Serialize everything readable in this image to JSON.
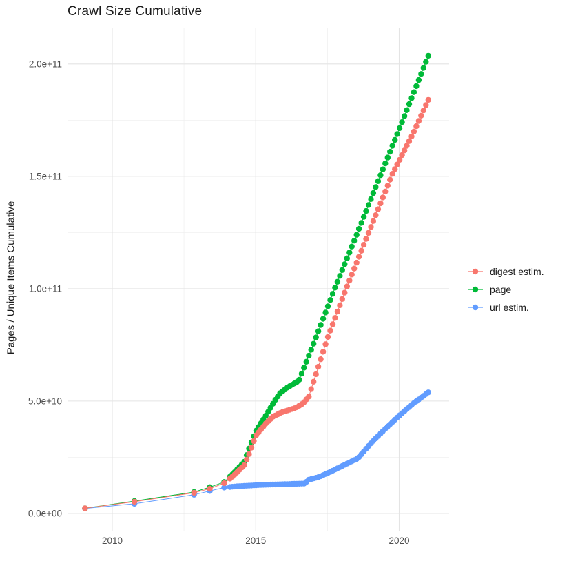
{
  "chart": {
    "title": "Crawl Size Cumulative"
  },
  "legend": {
    "items": [
      {
        "label": "digest estim.",
        "color": "#F8766D"
      },
      {
        "label": "page",
        "color": "#00BA38"
      },
      {
        "label": "url estim.",
        "color": "#619CFF"
      }
    ]
  },
  "chart_data": {
    "type": "scatter",
    "title": "Crawl Size Cumulative",
    "xlabel": "",
    "ylabel": "Pages / Unique Items Cumulative",
    "grid": true,
    "legend_position": "right",
    "xlim": [
      2008.44,
      2021.74
    ],
    "ylim": [
      -7700000000,
      215900000000
    ],
    "x_ticks": [
      {
        "value": 2010,
        "label": "2010"
      },
      {
        "value": 2015,
        "label": "2015"
      },
      {
        "value": 2020,
        "label": "2020"
      }
    ],
    "x_minor_ticks": [
      2012.5,
      2017.5
    ],
    "y_ticks": [
      {
        "value": 0,
        "label": "0.0e+00"
      },
      {
        "value": 50000000000,
        "label": "5.0e+10"
      },
      {
        "value": 100000000000,
        "label": "1.0e+11"
      },
      {
        "value": 150000000000,
        "label": "1.5e+11"
      },
      {
        "value": 200000000000,
        "label": "2.0e+11"
      }
    ],
    "y_minor_ticks": [
      25000000000,
      75000000000,
      125000000000,
      175000000000
    ],
    "point_radius": 4.2,
    "dense_range": [
      2014.1,
      2021.08
    ],
    "dense_step_years": 0.0833,
    "series": [
      {
        "name": "url estim.",
        "color": "#619CFF",
        "sparse_points": [
          [
            2009.05,
            2200000000.0
          ],
          [
            2010.77,
            4300000000.0
          ],
          [
            2012.85,
            8300000000.0
          ],
          [
            2013.4,
            10000000000.0
          ],
          [
            2013.9,
            11500000000.0
          ]
        ],
        "anchors": [
          [
            2009.05,
            2200000000.0
          ],
          [
            2010.77,
            4300000000.0
          ],
          [
            2012.85,
            8300000000.0
          ],
          [
            2013.4,
            10000000000.0
          ],
          [
            2013.9,
            11500000000.0
          ],
          [
            2014.3,
            12000000000.0
          ],
          [
            2015.2,
            12700000000.0
          ],
          [
            2016.0,
            13000000000.0
          ],
          [
            2016.7,
            13300000000.0
          ],
          [
            2016.85,
            15000000000.0
          ],
          [
            2017.2,
            16200000000.0
          ],
          [
            2017.6,
            18500000000.0
          ],
          [
            2018.0,
            21000000000.0
          ],
          [
            2018.56,
            24500000000.0
          ],
          [
            2019.0,
            31000000000.0
          ],
          [
            2019.5,
            37500000000.0
          ],
          [
            2020.0,
            43500000000.0
          ],
          [
            2020.5,
            49000000000.0
          ],
          [
            2021.08,
            54500000000.0
          ]
        ]
      },
      {
        "name": "page",
        "color": "#00BA38",
        "sparse_points": [
          [
            2009.05,
            2300000000.0
          ],
          [
            2010.77,
            5500000000.0
          ],
          [
            2012.85,
            9500000000.0
          ],
          [
            2013.4,
            11700000000.0
          ],
          [
            2013.9,
            14000000000.0
          ]
        ],
        "anchors": [
          [
            2009.05,
            2300000000.0
          ],
          [
            2010.77,
            5500000000.0
          ],
          [
            2012.85,
            9500000000.0
          ],
          [
            2013.4,
            11700000000.0
          ],
          [
            2013.9,
            14000000000.0
          ],
          [
            2014.2,
            17500000000.0
          ],
          [
            2014.6,
            23000000000.0
          ],
          [
            2014.77,
            29000000000.0
          ],
          [
            2015.0,
            36500000000.0
          ],
          [
            2015.35,
            43500000000.0
          ],
          [
            2015.68,
            50500000000.0
          ],
          [
            2015.85,
            53500000000.0
          ],
          [
            2016.1,
            56000000000.0
          ],
          [
            2016.5,
            59000000000.0
          ],
          [
            2017.0,
            75000000000.0
          ],
          [
            2017.75,
            100000000000.0
          ],
          [
            2018.5,
            123500000000.0
          ],
          [
            2019.3,
            149000000000.0
          ],
          [
            2020.0,
            171000000000.0
          ],
          [
            2020.5,
            187000000000.0
          ],
          [
            2021.08,
            205800000000.0
          ]
        ]
      },
      {
        "name": "digest estim.",
        "color": "#F8766D",
        "sparse_points": [
          [
            2009.05,
            2300000000.0
          ],
          [
            2010.77,
            5200000000.0
          ],
          [
            2012.85,
            9200000000.0
          ],
          [
            2013.4,
            11000000000.0
          ],
          [
            2013.9,
            13500000000.0
          ]
        ],
        "anchors": [
          [
            2009.05,
            2300000000.0
          ],
          [
            2010.77,
            5200000000.0
          ],
          [
            2012.85,
            9200000000.0
          ],
          [
            2013.4,
            11000000000.0
          ],
          [
            2013.9,
            13500000000.0
          ],
          [
            2014.2,
            16500000000.0
          ],
          [
            2014.6,
            21500000000.0
          ],
          [
            2014.77,
            26500000000.0
          ],
          [
            2015.0,
            34500000000.0
          ],
          [
            2015.35,
            40000000000.0
          ],
          [
            2015.6,
            43000000000.0
          ],
          [
            2015.9,
            45000000000.0
          ],
          [
            2016.4,
            47000000000.0
          ],
          [
            2016.65,
            49000000000.0
          ],
          [
            2016.85,
            52000000000.0
          ],
          [
            2017.5,
            78000000000.0
          ],
          [
            2018.15,
            100000000000.0
          ],
          [
            2019.0,
            127000000000.0
          ],
          [
            2019.76,
            151000000000.0
          ],
          [
            2020.48,
            169000000000.0
          ],
          [
            2021.08,
            185900000000.0
          ]
        ]
      }
    ]
  }
}
